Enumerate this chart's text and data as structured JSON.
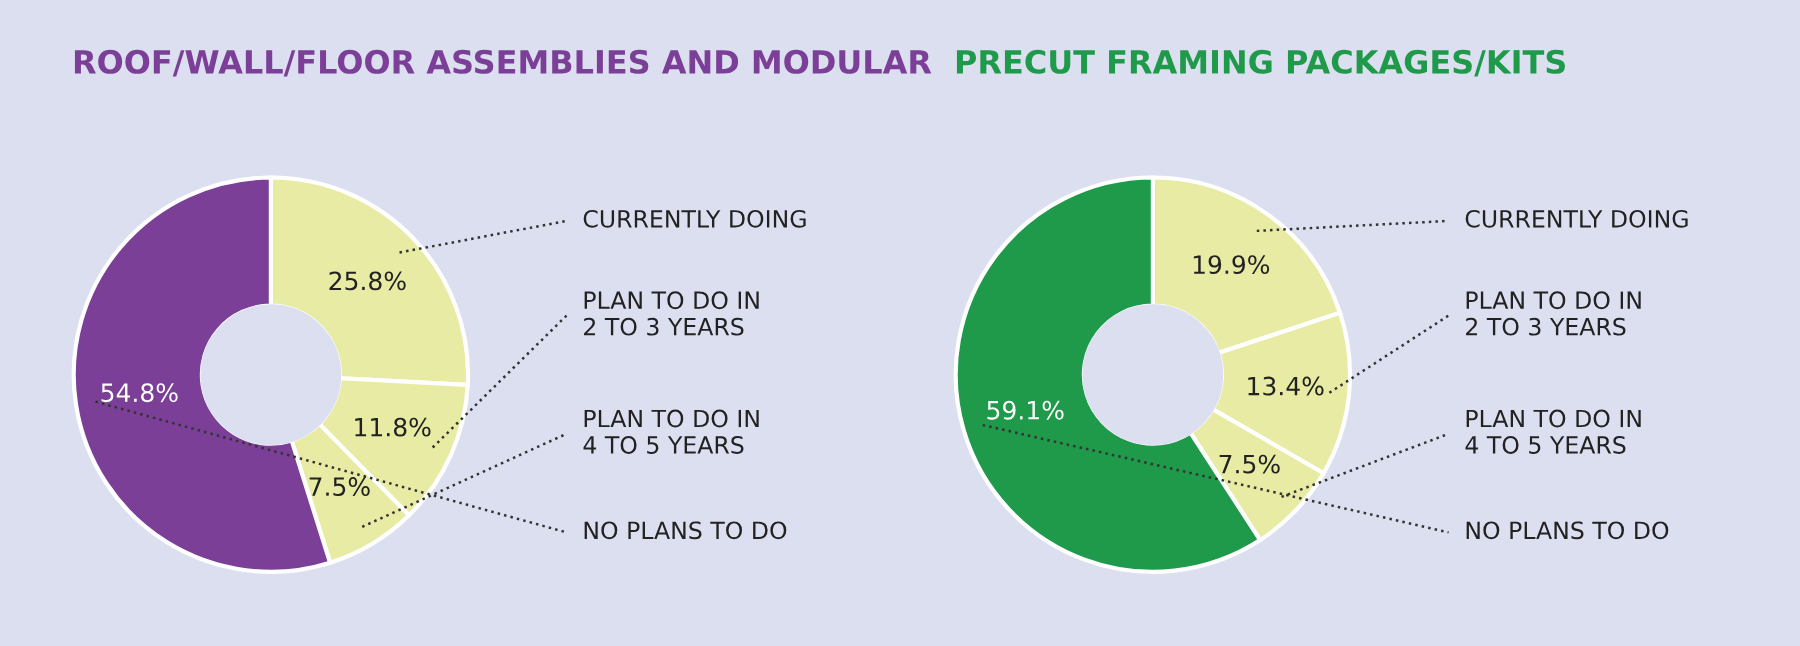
{
  "chart_data": [
    {
      "type": "donut",
      "title": "ROOF/WALL/FLOOR ASSEMBLIES AND MODULAR",
      "categories": [
        "CURRENTLY DOING",
        "PLAN TO DO IN\n2 TO 3 YEARS",
        "PLAN TO DO IN\n4 TO 5 YEARS",
        "NO PLANS TO DO"
      ],
      "values": [
        25.8,
        11.8,
        7.5,
        54.8
      ],
      "value_labels": [
        "25.8%",
        "11.8%",
        "7.5%",
        "54.8%"
      ],
      "colors": [
        "#e8eba3",
        "#e8eba3",
        "#e8eba3",
        "#7b3f98"
      ]
    },
    {
      "type": "donut",
      "title": "PRECUT FRAMING PACKAGES/KITS",
      "categories": [
        "CURRENTLY DOING",
        "PLAN TO DO IN\n2 TO 3 YEARS",
        "PLAN TO DO IN\n4 TO 5 YEARS",
        "NO PLANS TO DO"
      ],
      "values": [
        19.9,
        13.4,
        7.5,
        59.1
      ],
      "value_labels": [
        "19.9%",
        "13.4%",
        "7.5%",
        "59.1%"
      ],
      "colors": [
        "#e8eba3",
        "#e8eba3",
        "#e8eba3",
        "#1f9a4a"
      ]
    }
  ]
}
